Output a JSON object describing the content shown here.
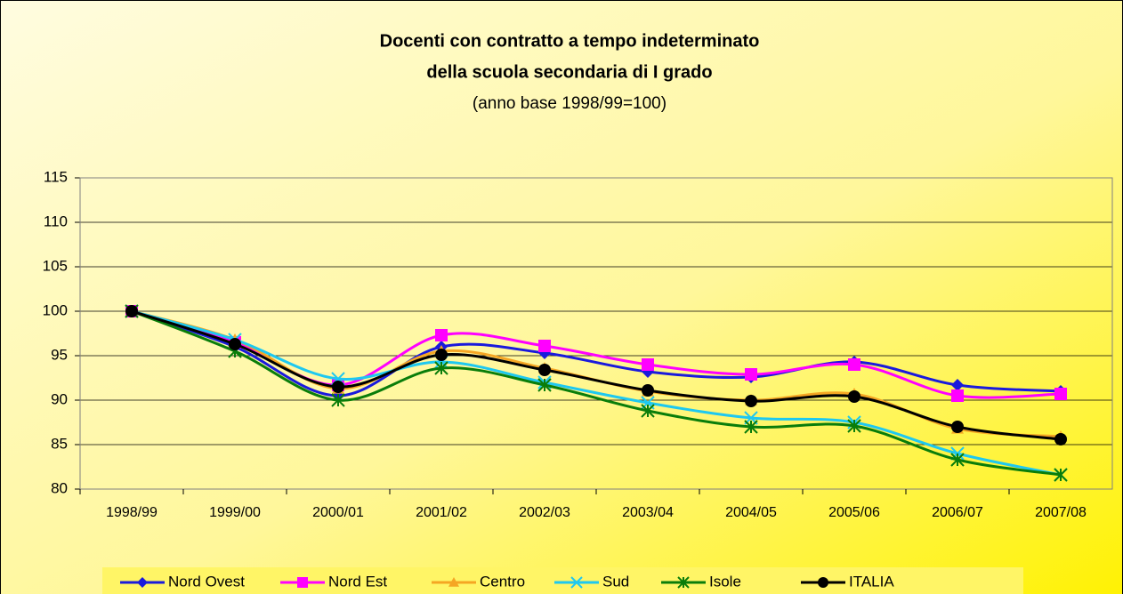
{
  "chart_data": {
    "type": "line",
    "title": [
      "Docenti con contratto a tempo indeterminato",
      "della scuola secondaria di I grado"
    ],
    "subtitle": "(anno base 1998/99=100)",
    "categories": [
      "1998/99",
      "1999/00",
      "2000/01",
      "2001/02",
      "2002/03",
      "2003/04",
      "2004/05",
      "2005/06",
      "2006/07",
      "2007/08"
    ],
    "series": [
      {
        "name": "Nord Ovest",
        "color": "#1a1adc",
        "marker": "diamond",
        "values": [
          100,
          96,
          90.5,
          96,
          95.3,
          93.2,
          92.6,
          94.3,
          91.7,
          91
        ]
      },
      {
        "name": "Nord Est",
        "color": "#ff00ff",
        "marker": "square",
        "values": [
          100,
          96.5,
          91.7,
          97.3,
          96.1,
          94,
          92.9,
          94,
          90.5,
          90.7
        ]
      },
      {
        "name": "Centro",
        "color": "#f5a623",
        "marker": "triangle",
        "values": [
          100,
          96.8,
          91.3,
          95.5,
          93.6,
          91,
          90,
          90.7,
          86.8,
          85.9
        ]
      },
      {
        "name": "Sud",
        "color": "#1ec8f0",
        "marker": "x",
        "values": [
          100,
          96.8,
          92.4,
          94.3,
          92,
          89.7,
          88,
          87.5,
          84,
          81.6
        ]
      },
      {
        "name": "Isole",
        "color": "#0a7d0a",
        "marker": "star",
        "values": [
          100,
          95.5,
          90,
          93.6,
          91.7,
          88.8,
          87,
          87.1,
          83.3,
          81.6
        ]
      },
      {
        "name": "ITALIA",
        "color": "#000000",
        "marker": "circle",
        "values": [
          100,
          96.3,
          91.5,
          95.1,
          93.4,
          91.1,
          89.9,
          90.4,
          87,
          85.6
        ]
      }
    ],
    "ylim": [
      80,
      115
    ],
    "yticks": [
      80,
      85,
      90,
      95,
      100,
      105,
      110,
      115
    ],
    "grid": true,
    "legend": "bottom"
  }
}
